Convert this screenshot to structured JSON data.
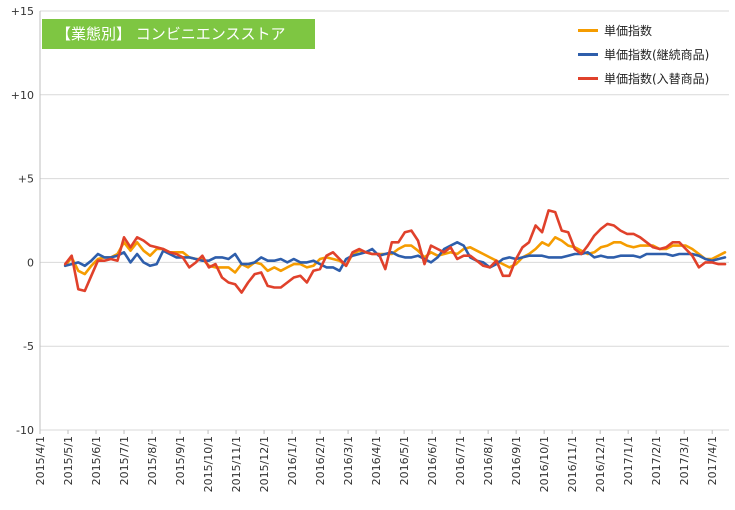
{
  "title": "【業態別】 コンビニエンスストア",
  "chart_data": {
    "type": "line",
    "title": "【業態別】 コンビニエンスストア",
    "ylim": [
      -10,
      15
    ],
    "y_ticks": [
      "-10",
      "-5",
      "0",
      "+5",
      "+10",
      "+15"
    ],
    "y_tick_values": [
      -10,
      -5,
      0,
      5,
      10,
      15
    ],
    "x_ticks": [
      "2015/4/1",
      "2015/5/1",
      "2015/6/1",
      "2015/7/1",
      "2015/8/1",
      "2015/9/1",
      "2015/10/1",
      "2015/11/1",
      "2015/12/1",
      "2016/1/1",
      "2016/2/1",
      "2016/3/1",
      "2016/4/1",
      "2016/5/1",
      "2016/6/1",
      "2016/7/1",
      "2016/8/1",
      "2016/9/1",
      "2016/10/1",
      "2016/11/1",
      "2016/12/1",
      "2017/1/1",
      "2017/2/1",
      "2017/3/1",
      "2017/4/1"
    ],
    "grid": true,
    "legend_position": "top-right",
    "series": [
      {
        "name": "単価指数",
        "color": "#f59c00",
        "values": [
          -0.2,
          0.3,
          -0.5,
          -0.7,
          -0.2,
          0.2,
          0.3,
          0.3,
          0.5,
          1.2,
          0.7,
          1.2,
          0.7,
          0.4,
          0.8,
          0.8,
          0.6,
          0.6,
          0.6,
          0.3,
          0.2,
          0.2,
          -0.2,
          -0.3,
          -0.3,
          -0.3,
          -0.6,
          -0.1,
          -0.3,
          0,
          -0.1,
          -0.5,
          -0.3,
          -0.5,
          -0.3,
          -0.1,
          -0.1,
          -0.3,
          -0.2,
          0.2,
          0.3,
          0.2,
          0.1,
          -0.2,
          0.5,
          0.7,
          0.6,
          0.5,
          0.5,
          0.5,
          0.5,
          0.8,
          1.0,
          1.0,
          0.7,
          0.3,
          0.6,
          0.4,
          0.5,
          0.6,
          0.5,
          0.8,
          0.9,
          0.7,
          0.5,
          0.3,
          0.1,
          -0.1,
          -0.3,
          -0.1,
          0.3,
          0.5,
          0.8,
          1.2,
          1.0,
          1.5,
          1.3,
          1.0,
          0.9,
          0.7,
          0.5,
          0.6,
          0.9,
          1.0,
          1.2,
          1.2,
          1.0,
          0.9,
          1.0,
          1.0,
          1.0,
          0.8,
          0.8,
          1.0,
          1.0,
          1.0,
          0.8,
          0.5,
          0.2,
          0.2,
          0.4,
          0.6
        ]
      },
      {
        "name": "単価指数(継続商品)",
        "color": "#2e5eab",
        "values": [
          -0.2,
          -0.1,
          0.0,
          -0.2,
          0.1,
          0.5,
          0.3,
          0.3,
          0.4,
          0.6,
          0.0,
          0.5,
          0.0,
          -0.2,
          -0.1,
          0.7,
          0.5,
          0.3,
          0.3,
          0.3,
          0.2,
          0.1,
          0.1,
          0.3,
          0.3,
          0.2,
          0.5,
          -0.1,
          -0.1,
          0.0,
          0.3,
          0.1,
          0.1,
          0.2,
          0.0,
          0.2,
          0.0,
          0.0,
          0.1,
          -0.1,
          -0.3,
          -0.3,
          -0.5,
          0.2,
          0.4,
          0.5,
          0.6,
          0.8,
          0.4,
          0.5,
          0.6,
          0.4,
          0.3,
          0.3,
          0.4,
          0.2,
          0.0,
          0.3,
          0.8,
          1.0,
          1.2,
          1.0,
          0.3,
          0.1,
          0.0,
          -0.3,
          -0.1,
          0.2,
          0.3,
          0.2,
          0.3,
          0.4,
          0.4,
          0.4,
          0.3,
          0.3,
          0.3,
          0.4,
          0.5,
          0.5,
          0.6,
          0.3,
          0.4,
          0.3,
          0.3,
          0.4,
          0.4,
          0.4,
          0.3,
          0.5,
          0.5,
          0.5,
          0.5,
          0.4,
          0.5,
          0.5,
          0.5,
          0.4,
          0.2,
          0.1,
          0.2,
          0.3
        ]
      },
      {
        "name": "単価指数(入替商品)",
        "color": "#e0412b",
        "values": [
          -0.1,
          0.4,
          -1.6,
          -1.7,
          -0.8,
          0.1,
          0.1,
          0.2,
          0.1,
          1.5,
          0.9,
          1.5,
          1.3,
          1.0,
          0.9,
          0.8,
          0.6,
          0.5,
          0.3,
          -0.3,
          0.0,
          0.4,
          -0.3,
          -0.1,
          -0.9,
          -1.2,
          -1.3,
          -1.8,
          -1.2,
          -0.7,
          -0.6,
          -1.4,
          -1.5,
          -1.5,
          -1.2,
          -0.9,
          -0.8,
          -1.2,
          -0.5,
          -0.4,
          0.4,
          0.6,
          0.2,
          -0.2,
          0.6,
          0.8,
          0.6,
          0.5,
          0.5,
          -0.4,
          1.2,
          1.2,
          1.8,
          1.9,
          1.3,
          -0.1,
          1.0,
          0.8,
          0.6,
          0.9,
          0.2,
          0.4,
          0.4,
          0.1,
          -0.2,
          -0.3,
          0.1,
          -0.8,
          -0.8,
          0.2,
          0.9,
          1.2,
          2.2,
          1.8,
          3.1,
          3.0,
          1.9,
          1.8,
          0.8,
          0.5,
          1.0,
          1.6,
          2.0,
          2.3,
          2.2,
          1.9,
          1.7,
          1.7,
          1.5,
          1.2,
          0.9,
          0.8,
          0.9,
          1.2,
          1.2,
          0.8,
          0.4,
          -0.3,
          0.0,
          0.0,
          -0.1,
          -0.1
        ]
      }
    ]
  }
}
